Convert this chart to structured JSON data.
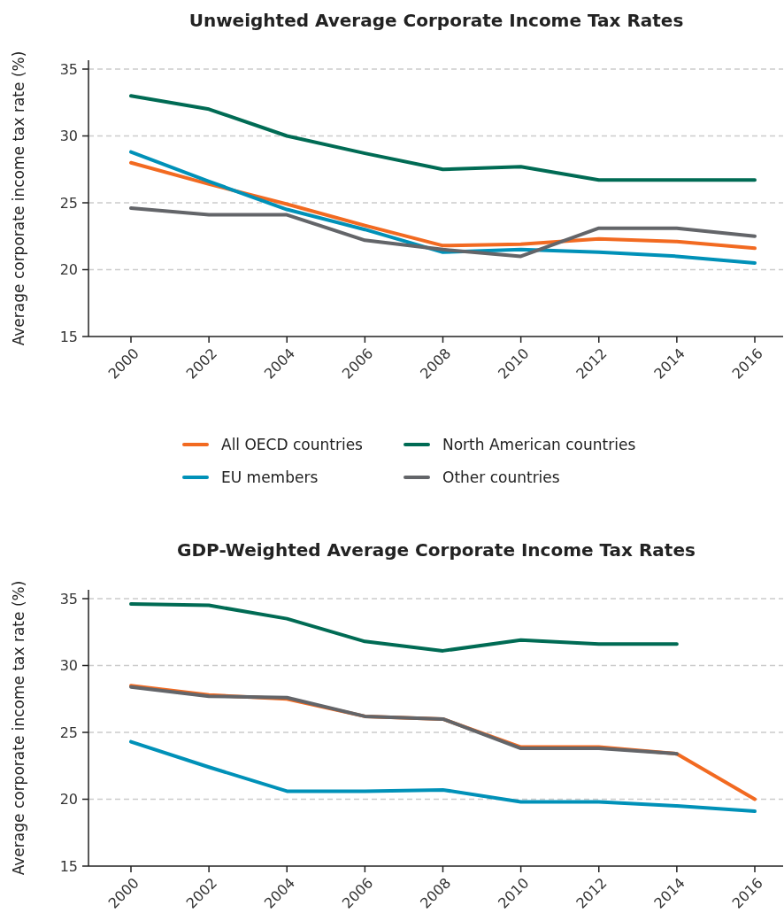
{
  "chart_data": [
    {
      "type": "line",
      "title": "Unweighted Average Corporate Income Tax Rates",
      "ylabel": "Average corporate income tax rate (%)",
      "categories": [
        "2000",
        "2002",
        "2004",
        "2006",
        "2008",
        "2010",
        "2012",
        "2014",
        "2016"
      ],
      "ylim": [
        15,
        35
      ],
      "yticks": [
        15,
        20,
        25,
        30,
        35
      ],
      "grid": "y",
      "legend": "bottom",
      "marker": "none",
      "series": [
        {
          "name": "All OECD countries",
          "color": "#f26a21",
          "values": [
            28.0,
            26.4,
            24.9,
            23.3,
            21.8,
            21.9,
            22.3,
            22.1,
            21.6
          ]
        },
        {
          "name": "EU members",
          "color": "#0091b8",
          "values": [
            28.8,
            26.6,
            24.5,
            23.0,
            21.3,
            21.5,
            21.3,
            21.0,
            20.5
          ]
        },
        {
          "name": "North American countries",
          "color": "#006b54",
          "values": [
            33.0,
            32.0,
            30.0,
            28.7,
            27.5,
            27.7,
            26.7,
            26.7,
            26.7
          ]
        },
        {
          "name": "Other countries",
          "color": "#636569",
          "values": [
            24.6,
            24.1,
            24.1,
            22.2,
            21.5,
            21.0,
            23.1,
            23.1,
            22.5
          ]
        }
      ]
    },
    {
      "type": "line",
      "title": "GDP-Weighted Average Corporate Income Tax Rates",
      "ylabel": "Average corporate income tax rate (%)",
      "categories": [
        "2000",
        "2002",
        "2004",
        "2006",
        "2008",
        "2010",
        "2012",
        "2014",
        "2016"
      ],
      "ylim": [
        15,
        35
      ],
      "yticks": [
        15,
        20,
        25,
        30,
        35
      ],
      "grid": "y",
      "marker": "none",
      "series": [
        {
          "color": "#f26a21",
          "values": [
            28.5,
            27.8,
            27.5,
            26.2,
            26.0,
            23.9,
            23.9,
            23.4,
            20.0
          ]
        },
        {
          "color": "#0091b8",
          "values": [
            24.3,
            22.4,
            20.6,
            20.6,
            20.7,
            19.8,
            19.8,
            19.5,
            19.1
          ]
        },
        {
          "color": "#006b54",
          "values": [
            34.6,
            34.5,
            33.5,
            31.8,
            31.1,
            31.9,
            31.6,
            31.6,
            null
          ]
        },
        {
          "color": "#636569",
          "values": [
            28.4,
            27.7,
            27.6,
            26.2,
            26.0,
            23.8,
            23.8,
            23.4,
            null
          ]
        }
      ]
    }
  ]
}
